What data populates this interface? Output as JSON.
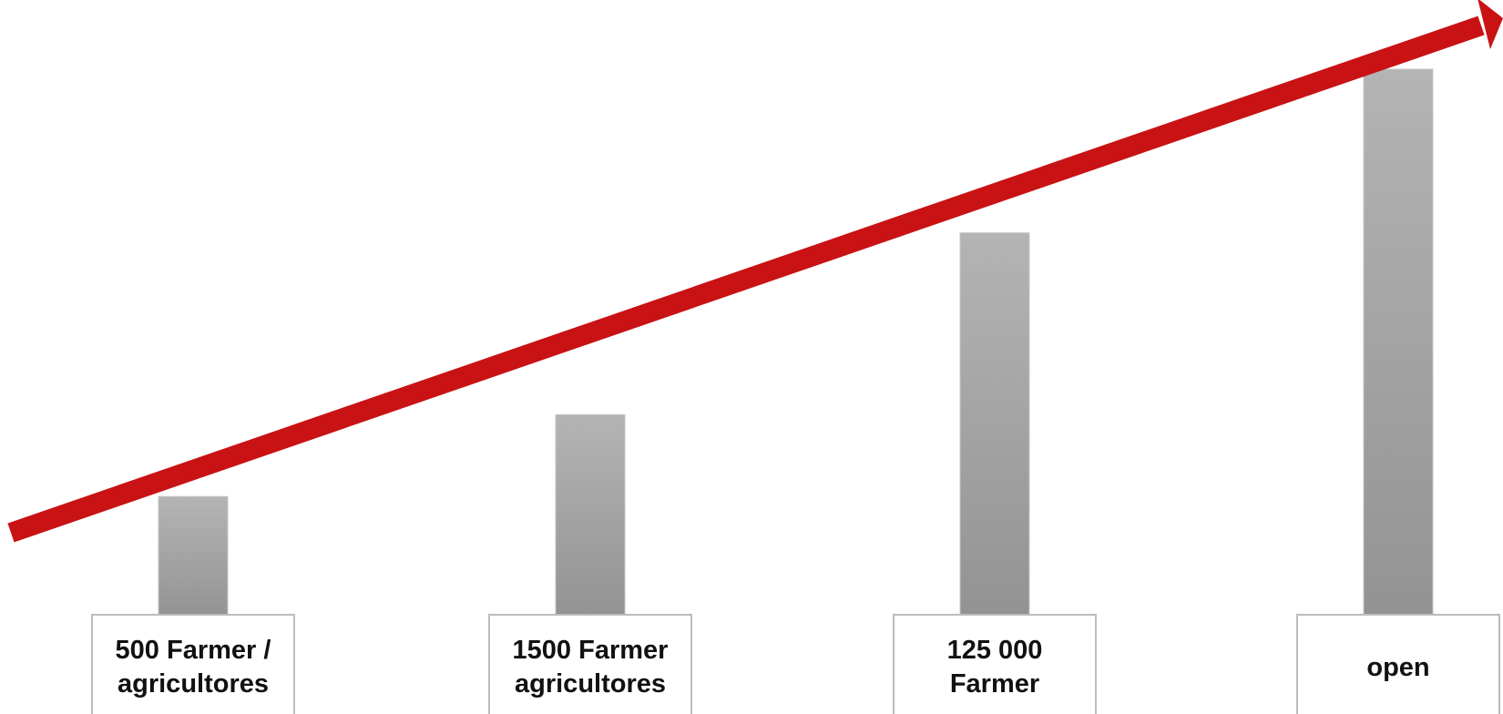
{
  "chart_data": {
    "type": "bar",
    "categories": [
      [
        "500 Farmer /",
        "agricultores"
      ],
      [
        "1500 Farmer",
        "agricultores"
      ],
      [
        "125 000",
        "Farmer"
      ],
      [
        "open"
      ]
    ],
    "values": [
      13,
      22,
      42,
      60
    ],
    "ylim": [
      0,
      60
    ],
    "title": "",
    "xlabel": "",
    "ylabel": "",
    "grid": false,
    "legend": "none",
    "trend_arrow": true,
    "colors": {
      "bar_top": "#b4b4b4",
      "bar_bottom": "#939393",
      "arrow": "#c81214",
      "label_border": "#bcbcbc",
      "label_text": "#111111"
    }
  }
}
